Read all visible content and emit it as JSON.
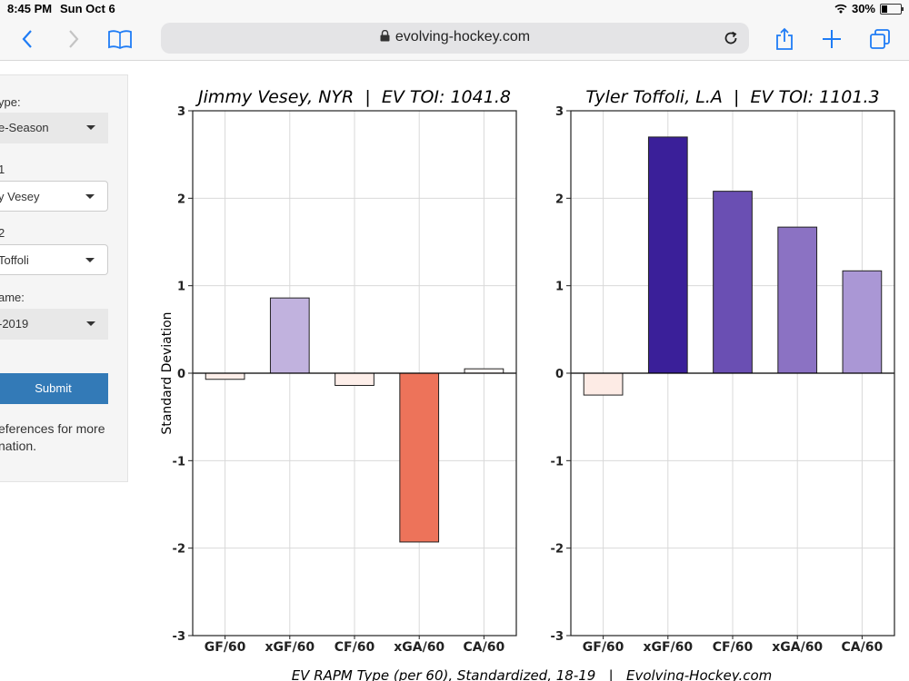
{
  "status_bar": {
    "time": "8:45 PM",
    "date": "Sun Oct 6",
    "battery": "30%",
    "battery_level": 0.3
  },
  "browser": {
    "url": "evolving-hockey.com"
  },
  "sidebar": {
    "label_type": "ype:",
    "type_value": "e-Season",
    "label_p1": "1",
    "player1_value": "y Vesey",
    "label_p2": "2",
    "player2_value": " Toffoli",
    "label_game": "ame:",
    "season_value": "-2019",
    "submit_label": "Submit",
    "help_text": "eferences for more\nnation."
  },
  "chart_data": [
    {
      "type": "bar",
      "title": "Jimmy Vesey, NYR  |  EV TOI: 1041.8",
      "ylabel": "Standard Deviation",
      "ylim": [
        -3,
        3
      ],
      "yticks": [
        -3,
        -2,
        -1,
        0,
        1,
        2,
        3
      ],
      "grid": true,
      "categories": [
        "GF/60",
        "xGF/60",
        "CF/60",
        "xGA/60",
        "CA/60"
      ],
      "values": [
        -0.07,
        0.86,
        -0.14,
        -1.93,
        0.05
      ],
      "colors": [
        "#fdeee9",
        "#c1b2de",
        "#fdeee9",
        "#ed735a",
        "#fff8f6"
      ]
    },
    {
      "type": "bar",
      "title": "Tyler Toffoli, L.A  |  EV TOI: 1101.3",
      "ylabel": "",
      "ylim": [
        -3,
        3
      ],
      "yticks": [
        -3,
        -2,
        -1,
        0,
        1,
        2,
        3
      ],
      "grid": true,
      "categories": [
        "GF/60",
        "xGF/60",
        "CF/60",
        "xGA/60",
        "CA/60"
      ],
      "values": [
        -0.25,
        2.7,
        2.08,
        1.67,
        1.17
      ],
      "colors": [
        "#fdebe5",
        "#3a1f99",
        "#6a4fb3",
        "#8b72c3",
        "#aa97d5"
      ]
    }
  ],
  "caption": "EV RAPM Type (per 60), Standardized, 18-19   |   Evolving-Hockey.com"
}
